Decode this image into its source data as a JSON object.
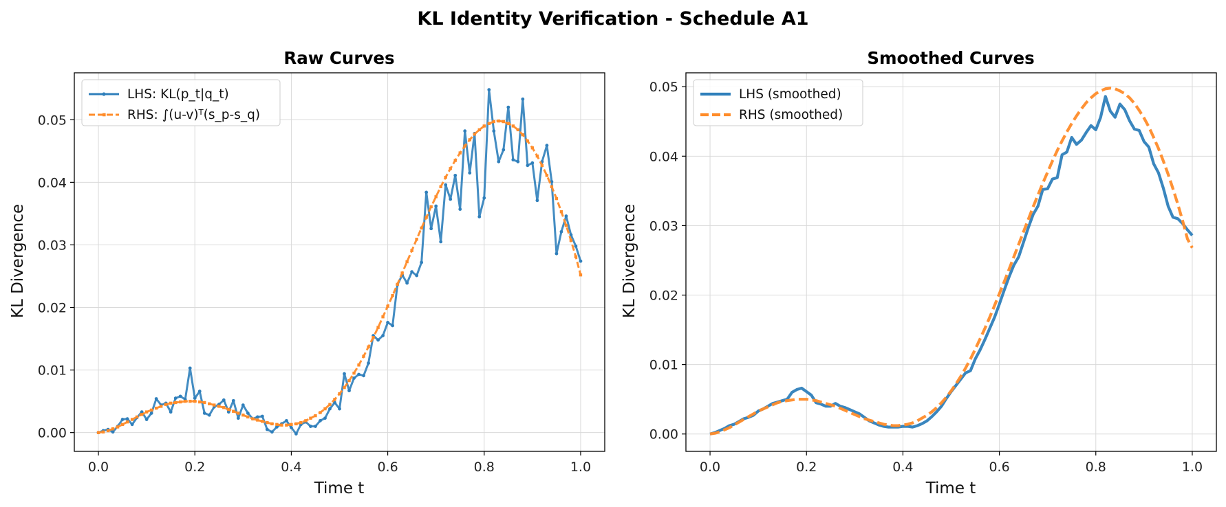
{
  "figure": {
    "title": "KL Identity Verification - Schedule A1"
  },
  "colors": {
    "lhs": "#2f7fbb",
    "rhs": "#ff8c2a"
  },
  "chart_data": [
    {
      "type": "line",
      "title": "Raw Curves",
      "xlabel": "Time t",
      "ylabel": "KL Divergence",
      "xlim": [
        -0.05,
        1.05
      ],
      "ylim": [
        -0.003,
        0.0575
      ],
      "xticks": [
        "0.0",
        "0.2",
        "0.4",
        "0.6",
        "0.8",
        "1.0"
      ],
      "xtick_values": [
        0.0,
        0.2,
        0.4,
        0.6,
        0.8,
        1.0
      ],
      "yticks": [
        "0.00",
        "0.01",
        "0.02",
        "0.03",
        "0.04",
        "0.05"
      ],
      "ytick_values": [
        0.0,
        0.01,
        0.02,
        0.03,
        0.04,
        0.05
      ],
      "grid": true,
      "legend_position": "top-left",
      "series": [
        {
          "name": "LHS: KL(p_t|q_t)",
          "style": "solid-marker",
          "x": [
            0.0,
            0.01,
            0.02,
            0.03,
            0.04,
            0.05,
            0.06,
            0.07,
            0.08,
            0.09,
            0.1,
            0.11,
            0.12,
            0.13,
            0.14,
            0.15,
            0.16,
            0.17,
            0.18,
            0.19,
            0.2,
            0.21,
            0.22,
            0.23,
            0.24,
            0.25,
            0.26,
            0.27,
            0.28,
            0.29,
            0.3,
            0.31,
            0.32,
            0.33,
            0.34,
            0.35,
            0.36,
            0.37,
            0.38,
            0.39,
            0.4,
            0.41,
            0.42,
            0.43,
            0.44,
            0.45,
            0.46,
            0.47,
            0.48,
            0.49,
            0.5,
            0.51,
            0.52,
            0.53,
            0.54,
            0.55,
            0.56,
            0.57,
            0.58,
            0.59,
            0.6,
            0.61,
            0.62,
            0.63,
            0.64,
            0.65,
            0.66,
            0.67,
            0.68,
            0.69,
            0.7,
            0.71,
            0.72,
            0.73,
            0.74,
            0.75,
            0.76,
            0.77,
            0.78,
            0.79,
            0.8,
            0.81,
            0.82,
            0.83,
            0.84,
            0.85,
            0.86,
            0.87,
            0.88,
            0.89,
            0.9,
            0.91,
            0.92,
            0.93,
            0.94,
            0.95,
            0.96,
            0.97,
            0.98,
            0.99,
            1.0
          ],
          "y": [
            0.0,
            0.0003,
            0.0005,
            0.0001,
            0.001,
            0.0021,
            0.0022,
            0.0013,
            0.0024,
            0.0033,
            0.0021,
            0.0031,
            0.0054,
            0.0044,
            0.0047,
            0.0033,
            0.0055,
            0.0058,
            0.0053,
            0.0103,
            0.0055,
            0.0066,
            0.0031,
            0.0028,
            0.0041,
            0.0045,
            0.0052,
            0.0033,
            0.0051,
            0.0023,
            0.0044,
            0.0031,
            0.0022,
            0.0025,
            0.0026,
            0.0005,
            0.0001,
            0.0009,
            0.0014,
            0.0019,
            0.0008,
            -0.0002,
            0.0013,
            0.0017,
            0.001,
            0.001,
            0.0019,
            0.0023,
            0.0038,
            0.0048,
            0.0038,
            0.0094,
            0.0067,
            0.0087,
            0.0093,
            0.0091,
            0.0111,
            0.0155,
            0.0148,
            0.0155,
            0.0176,
            0.0171,
            0.0236,
            0.0252,
            0.0239,
            0.0257,
            0.0251,
            0.0272,
            0.0384,
            0.0326,
            0.0362,
            0.0305,
            0.0396,
            0.0373,
            0.0411,
            0.0357,
            0.0482,
            0.0415,
            0.0478,
            0.0345,
            0.0375,
            0.0548,
            0.0482,
            0.0433,
            0.0452,
            0.052,
            0.0436,
            0.0433,
            0.0533,
            0.0427,
            0.0431,
            0.0371,
            0.0433,
            0.0459,
            0.0401,
            0.0286,
            0.0321,
            0.0346,
            0.0316,
            0.0298,
            0.0274
          ]
        },
        {
          "name": "RHS: ∫(u-v)ᵀ(s_p-s_q)",
          "style": "dashed-marker",
          "x": [
            0.0,
            0.01,
            0.02,
            0.03,
            0.04,
            0.05,
            0.06,
            0.07,
            0.08,
            0.09,
            0.1,
            0.11,
            0.12,
            0.13,
            0.14,
            0.15,
            0.16,
            0.17,
            0.18,
            0.19,
            0.2,
            0.21,
            0.22,
            0.23,
            0.24,
            0.25,
            0.26,
            0.27,
            0.28,
            0.29,
            0.3,
            0.31,
            0.32,
            0.33,
            0.34,
            0.35,
            0.36,
            0.37,
            0.38,
            0.39,
            0.4,
            0.41,
            0.42,
            0.43,
            0.44,
            0.45,
            0.46,
            0.47,
            0.48,
            0.49,
            0.5,
            0.51,
            0.52,
            0.53,
            0.54,
            0.55,
            0.56,
            0.57,
            0.58,
            0.59,
            0.6,
            0.61,
            0.62,
            0.63,
            0.64,
            0.65,
            0.66,
            0.67,
            0.68,
            0.69,
            0.7,
            0.71,
            0.72,
            0.73,
            0.74,
            0.75,
            0.76,
            0.77,
            0.78,
            0.79,
            0.8,
            0.81,
            0.82,
            0.83,
            0.84,
            0.85,
            0.86,
            0.87,
            0.88,
            0.89,
            0.9,
            0.91,
            0.92,
            0.93,
            0.94,
            0.95,
            0.96,
            0.97,
            0.98,
            0.99,
            1.0
          ],
          "y": [
            0.0,
            0.0001,
            0.0003,
            0.0006,
            0.0009,
            0.0013,
            0.0017,
            0.0021,
            0.0025,
            0.0029,
            0.0033,
            0.0036,
            0.0039,
            0.0042,
            0.0045,
            0.0047,
            0.0048,
            0.0049,
            0.005,
            0.005,
            0.005,
            0.0049,
            0.0048,
            0.0046,
            0.0044,
            0.0042,
            0.004,
            0.0037,
            0.0034,
            0.0031,
            0.0028,
            0.0025,
            0.0022,
            0.002,
            0.0018,
            0.0016,
            0.0014,
            0.0013,
            0.0012,
            0.0012,
            0.0013,
            0.0014,
            0.0016,
            0.0019,
            0.0023,
            0.0027,
            0.0032,
            0.0038,
            0.0045,
            0.0053,
            0.0062,
            0.0072,
            0.0083,
            0.0095,
            0.0108,
            0.0122,
            0.0137,
            0.0152,
            0.0168,
            0.0185,
            0.0202,
            0.0219,
            0.0237,
            0.0255,
            0.0273,
            0.0291,
            0.0309,
            0.0327,
            0.0344,
            0.0361,
            0.0377,
            0.0393,
            0.0408,
            0.0422,
            0.0435,
            0.0447,
            0.0458,
            0.0468,
            0.0477,
            0.0484,
            0.049,
            0.0494,
            0.0497,
            0.0498,
            0.0497,
            0.0494,
            0.049,
            0.0484,
            0.0476,
            0.0466,
            0.0455,
            0.0442,
            0.0427,
            0.0411,
            0.0393,
            0.0374,
            0.0353,
            0.0331,
            0.0307,
            0.0281,
            0.0252
          ]
        }
      ]
    },
    {
      "type": "line",
      "title": "Smoothed Curves",
      "xlabel": "Time t",
      "ylabel": "KL Divergence",
      "xlim": [
        -0.05,
        1.05
      ],
      "ylim": [
        -0.0025,
        0.052
      ],
      "xticks": [
        "0.0",
        "0.2",
        "0.4",
        "0.6",
        "0.8",
        "1.0"
      ],
      "xtick_values": [
        0.0,
        0.2,
        0.4,
        0.6,
        0.8,
        1.0
      ],
      "yticks": [
        "0.00",
        "0.01",
        "0.02",
        "0.03",
        "0.04",
        "0.05"
      ],
      "ytick_values": [
        0.0,
        0.01,
        0.02,
        0.03,
        0.04,
        0.05
      ],
      "grid": true,
      "legend_position": "top-left",
      "series": [
        {
          "name": "LHS (smoothed)",
          "style": "solid",
          "x": [
            0.0,
            0.01,
            0.02,
            0.03,
            0.04,
            0.05,
            0.06,
            0.07,
            0.08,
            0.09,
            0.1,
            0.11,
            0.12,
            0.13,
            0.14,
            0.15,
            0.16,
            0.17,
            0.18,
            0.19,
            0.2,
            0.21,
            0.22,
            0.23,
            0.24,
            0.25,
            0.26,
            0.27,
            0.28,
            0.29,
            0.3,
            0.31,
            0.32,
            0.33,
            0.34,
            0.35,
            0.36,
            0.37,
            0.38,
            0.39,
            0.4,
            0.41,
            0.42,
            0.43,
            0.44,
            0.45,
            0.46,
            0.47,
            0.48,
            0.49,
            0.5,
            0.51,
            0.52,
            0.53,
            0.54,
            0.55,
            0.56,
            0.57,
            0.58,
            0.59,
            0.6,
            0.61,
            0.62,
            0.63,
            0.64,
            0.65,
            0.66,
            0.67,
            0.68,
            0.69,
            0.7,
            0.71,
            0.72,
            0.73,
            0.74,
            0.75,
            0.76,
            0.77,
            0.78,
            0.79,
            0.8,
            0.81,
            0.82,
            0.83,
            0.84,
            0.85,
            0.86,
            0.87,
            0.88,
            0.89,
            0.9,
            0.91,
            0.92,
            0.93,
            0.94,
            0.95,
            0.96,
            0.97,
            0.98,
            0.99,
            1.0
          ],
          "y": [
            0.0,
            0.0002,
            0.0005,
            0.0008,
            0.0012,
            0.0014,
            0.0018,
            0.0022,
            0.0024,
            0.0027,
            0.0033,
            0.0036,
            0.004,
            0.0044,
            0.0046,
            0.0048,
            0.005,
            0.006,
            0.0064,
            0.0066,
            0.0061,
            0.0056,
            0.0045,
            0.0043,
            0.004,
            0.004,
            0.0044,
            0.004,
            0.0038,
            0.0035,
            0.0032,
            0.0029,
            0.0024,
            0.0019,
            0.0016,
            0.0013,
            0.0011,
            0.001,
            0.001,
            0.001,
            0.0011,
            0.0011,
            0.001,
            0.0012,
            0.0015,
            0.0019,
            0.0025,
            0.0032,
            0.004,
            0.0051,
            0.0061,
            0.007,
            0.0079,
            0.0088,
            0.0091,
            0.0108,
            0.0121,
            0.0136,
            0.0152,
            0.0168,
            0.0187,
            0.0207,
            0.0226,
            0.0243,
            0.0255,
            0.0276,
            0.0297,
            0.0316,
            0.0328,
            0.0352,
            0.0353,
            0.0367,
            0.0369,
            0.0402,
            0.0406,
            0.0427,
            0.0417,
            0.0423,
            0.0434,
            0.0444,
            0.0438,
            0.0456,
            0.0486,
            0.0465,
            0.0456,
            0.0475,
            0.0467,
            0.0451,
            0.0439,
            0.0437,
            0.0421,
            0.0413,
            0.0389,
            0.0376,
            0.0354,
            0.0328,
            0.0312,
            0.031,
            0.0303,
            0.0294,
            0.0286
          ]
        },
        {
          "name": "RHS (smoothed)",
          "style": "dashed",
          "x": [
            0.0,
            0.01,
            0.02,
            0.03,
            0.04,
            0.05,
            0.06,
            0.07,
            0.08,
            0.09,
            0.1,
            0.11,
            0.12,
            0.13,
            0.14,
            0.15,
            0.16,
            0.17,
            0.18,
            0.19,
            0.2,
            0.21,
            0.22,
            0.23,
            0.24,
            0.25,
            0.26,
            0.27,
            0.28,
            0.29,
            0.3,
            0.31,
            0.32,
            0.33,
            0.34,
            0.35,
            0.36,
            0.37,
            0.38,
            0.39,
            0.4,
            0.41,
            0.42,
            0.43,
            0.44,
            0.45,
            0.46,
            0.47,
            0.48,
            0.49,
            0.5,
            0.51,
            0.52,
            0.53,
            0.54,
            0.55,
            0.56,
            0.57,
            0.58,
            0.59,
            0.6,
            0.61,
            0.62,
            0.63,
            0.64,
            0.65,
            0.66,
            0.67,
            0.68,
            0.69,
            0.7,
            0.71,
            0.72,
            0.73,
            0.74,
            0.75,
            0.76,
            0.77,
            0.78,
            0.79,
            0.8,
            0.81,
            0.82,
            0.83,
            0.84,
            0.85,
            0.86,
            0.87,
            0.88,
            0.89,
            0.9,
            0.91,
            0.92,
            0.93,
            0.94,
            0.95,
            0.96,
            0.97,
            0.98,
            0.99,
            1.0
          ],
          "y": [
            0.0,
            0.0001,
            0.0003,
            0.0006,
            0.0009,
            0.0013,
            0.0017,
            0.0021,
            0.0025,
            0.0029,
            0.0033,
            0.0036,
            0.0039,
            0.0042,
            0.0045,
            0.0047,
            0.0048,
            0.0049,
            0.005,
            0.005,
            0.005,
            0.0049,
            0.0048,
            0.0046,
            0.0044,
            0.0042,
            0.004,
            0.0037,
            0.0034,
            0.0031,
            0.0028,
            0.0025,
            0.0022,
            0.002,
            0.0018,
            0.0016,
            0.0014,
            0.0013,
            0.0012,
            0.0012,
            0.0013,
            0.0014,
            0.0016,
            0.0019,
            0.0023,
            0.0027,
            0.0032,
            0.0038,
            0.0045,
            0.0053,
            0.0062,
            0.0072,
            0.0083,
            0.0095,
            0.0108,
            0.0122,
            0.0137,
            0.0152,
            0.0168,
            0.0185,
            0.0202,
            0.0219,
            0.0237,
            0.0255,
            0.0273,
            0.0291,
            0.0309,
            0.0327,
            0.0344,
            0.0361,
            0.0377,
            0.0393,
            0.0408,
            0.0422,
            0.0435,
            0.0447,
            0.0458,
            0.0468,
            0.0477,
            0.0484,
            0.049,
            0.0494,
            0.0497,
            0.0498,
            0.0497,
            0.0494,
            0.049,
            0.0484,
            0.0476,
            0.0466,
            0.0455,
            0.0442,
            0.0427,
            0.0411,
            0.0393,
            0.0374,
            0.0353,
            0.0331,
            0.0307,
            0.0281,
            0.0268
          ]
        }
      ]
    }
  ]
}
